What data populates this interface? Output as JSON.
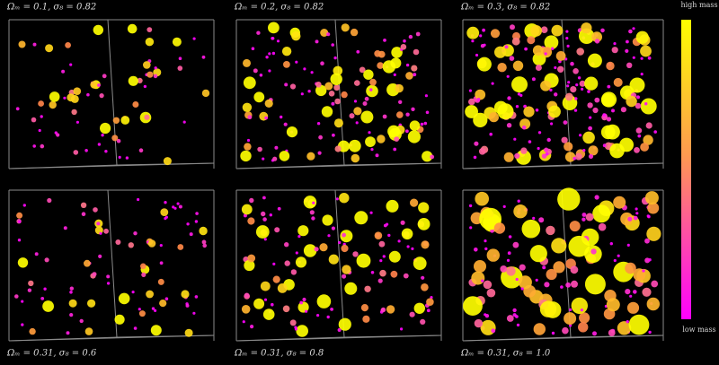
{
  "panels": [
    {
      "label": "Ωₘ = 0.1, σ₈ = 0.82"
    },
    {
      "label": "Ωₘ = 0.2, σ₈ = 0.82"
    },
    {
      "label": "Ωₘ = 0.3, σ₈ = 0.82"
    },
    {
      "label": "Ωₘ = 0.31, σ₈ = 0.6"
    },
    {
      "label": "Ωₘ = 0.31, σ₈ = 0.8"
    },
    {
      "label": "Ωₘ = 0.31, σ₈ = 1.0"
    }
  ],
  "colorbar": {
    "top_label": "high mass",
    "bottom_label": "low mass"
  }
}
